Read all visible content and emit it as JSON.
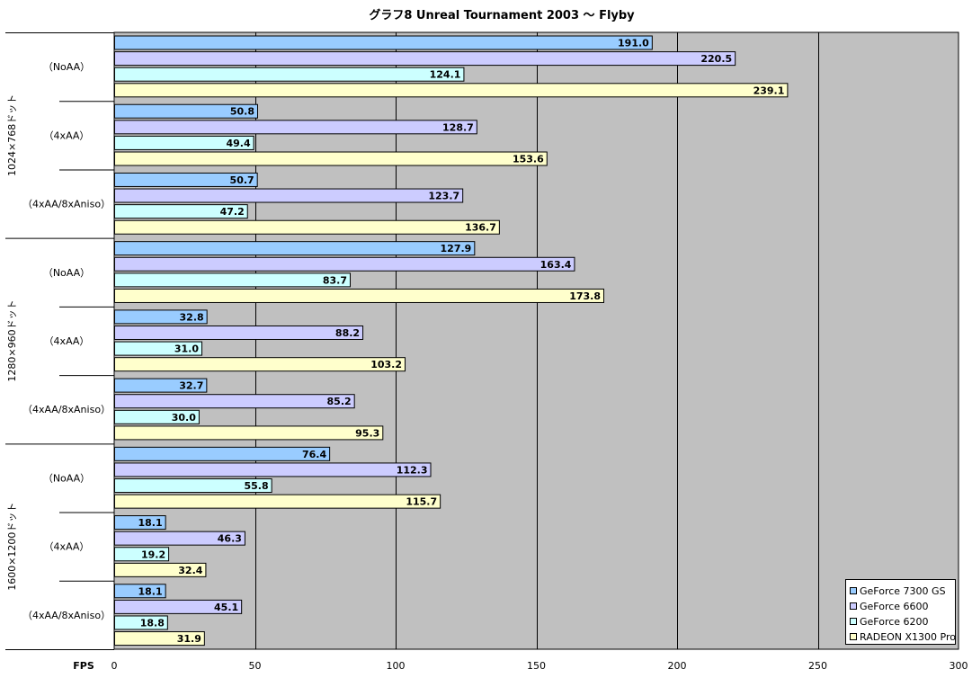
{
  "chart_data": {
    "type": "bar",
    "orientation": "horizontal",
    "title": "グラフ8  Unreal Tournament 2003 〜 Flyby",
    "xlabel": "FPS",
    "xlim": [
      0,
      300
    ],
    "xticks": [
      0,
      50,
      100,
      150,
      200,
      250,
      300
    ],
    "grid": true,
    "legend_position": "bottom-right",
    "groups": [
      {
        "resolution": "1024×768ドット",
        "settings": [
          "（NoAA）",
          "（4xAA）",
          "（4xAA/8xAniso）"
        ]
      },
      {
        "resolution": "1280×960ドット",
        "settings": [
          "（NoAA）",
          "（4xAA）",
          "（4xAA/8xAniso）"
        ]
      },
      {
        "resolution": "1600×1200ドット",
        "settings": [
          "（NoAA）",
          "（4xAA）",
          "（4xAA/8xAniso）"
        ]
      }
    ],
    "categories": [
      "1024×768ドット （NoAA）",
      "1024×768ドット （4xAA）",
      "1024×768ドット （4xAA/8xAniso）",
      "1280×960ドット （NoAA）",
      "1280×960ドット （4xAA）",
      "1280×960ドット （4xAA/8xAniso）",
      "1600×1200ドット （NoAA）",
      "1600×1200ドット （4xAA）",
      "1600×1200ドット （4xAA/8xAniso）"
    ],
    "series": [
      {
        "name": "GeForce 7300 GS",
        "color": "#99ccff",
        "values": [
          191.0,
          50.8,
          50.7,
          127.9,
          32.8,
          32.7,
          76.4,
          18.1,
          18.1
        ]
      },
      {
        "name": "GeForce 6600",
        "color": "#ccccff",
        "values": [
          220.5,
          128.7,
          123.7,
          163.4,
          88.2,
          85.2,
          112.3,
          46.3,
          45.1
        ]
      },
      {
        "name": "GeForce 6200",
        "color": "#ccffff",
        "values": [
          124.1,
          49.4,
          47.2,
          83.7,
          31.0,
          30.0,
          55.8,
          19.2,
          18.8
        ]
      },
      {
        "name": "RADEON X1300 Pro",
        "color": "#ffffcc",
        "values": [
          239.1,
          153.6,
          136.7,
          173.8,
          103.2,
          95.3,
          115.7,
          32.4,
          31.9
        ]
      }
    ],
    "colors": {
      "plot_background": "#c0c0c0",
      "gridline": "#000000"
    }
  }
}
